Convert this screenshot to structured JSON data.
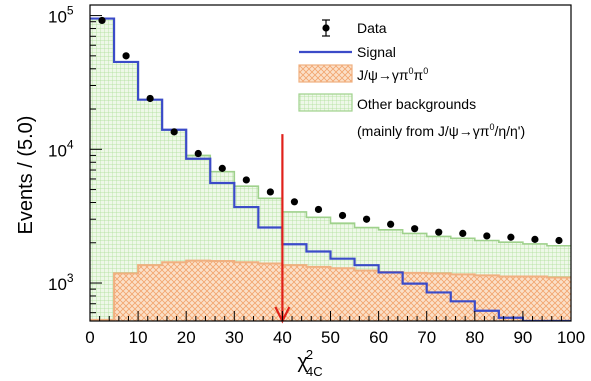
{
  "chart_data": {
    "type": "histogram",
    "xlabel": "χ",
    "xlabel_superscript": "2",
    "xlabel_subscript": "4C",
    "ylabel": "Events / (5.0)",
    "xlim": [
      0,
      100
    ],
    "ylim": [
      520,
      120000
    ],
    "yscale": "log",
    "x_ticks": [
      "0",
      "10",
      "20",
      "30",
      "40",
      "50",
      "60",
      "70",
      "80",
      "90",
      "100"
    ],
    "y_ticks": [
      {
        "base": "10",
        "exp": "3",
        "value": 1000
      },
      {
        "base": "10",
        "exp": "4",
        "value": 10000
      },
      {
        "base": "10",
        "exp": "5",
        "value": 100000
      }
    ],
    "bin_edges": [
      0,
      5,
      10,
      15,
      20,
      25,
      30,
      35,
      40,
      45,
      50,
      55,
      60,
      65,
      70,
      75,
      80,
      85,
      90,
      95,
      100
    ],
    "series": [
      {
        "name": "Data",
        "style": "points",
        "color": "#000000",
        "x": [
          2.5,
          7.5,
          12.5,
          17.5,
          22.5,
          27.5,
          32.5,
          37.5,
          42.5,
          47.5,
          52.5,
          57.5,
          62.5,
          67.5,
          72.5,
          77.5,
          82.5,
          87.5,
          92.5,
          97.5
        ],
        "values": [
          92000,
          50000,
          24000,
          13500,
          9300,
          7200,
          5900,
          4800,
          4050,
          3550,
          3200,
          3000,
          2750,
          2550,
          2400,
          2350,
          2250,
          2200,
          2120,
          2080
        ]
      },
      {
        "name": "Signal",
        "style": "step",
        "color": "#3b4bc8",
        "values": [
          95000,
          45000,
          23500,
          14000,
          8500,
          5600,
          3700,
          2600,
          1950,
          1720,
          1520,
          1360,
          1200,
          990,
          850,
          730,
          620,
          550,
          510,
          490
        ]
      },
      {
        "name": "J/ψ→γπ0π0",
        "legend_label": "J/ψ→γπ",
        "legend_sup1": "0",
        "legend_mid": "π",
        "legend_sup2": "0",
        "style": "hatched-fill",
        "fill": "#f9d2b4",
        "stroke": "#f0b080",
        "values": [
          530,
          1180,
          1360,
          1430,
          1470,
          1460,
          1430,
          1400,
          1360,
          1320,
          1290,
          1240,
          1210,
          1190,
          1180,
          1160,
          1140,
          1120,
          1120,
          1100
        ]
      },
      {
        "name": "Other backgrounds",
        "style": "grid-fill",
        "fill": "#e6f3df",
        "stroke": "#9fd18c",
        "values": [
          95000,
          45000,
          23500,
          14000,
          9000,
          6800,
          5300,
          4300,
          3400,
          3100,
          2800,
          2600,
          2500,
          2350,
          2230,
          2160,
          2080,
          2020,
          1960,
          1900
        ]
      }
    ],
    "legend": {
      "position": "top-right",
      "entries": [
        "Data",
        "Signal",
        "J/ψ→γπ0π0",
        "Other backgrounds"
      ],
      "note": "(mainly from J/ψ→γπ",
      "note_sup": "0",
      "note_tail": "/η/η')"
    },
    "cut_marker": {
      "x": 40,
      "y_from": 13000,
      "y_to": 520,
      "color": "#e0211b",
      "direction": "down"
    }
  }
}
